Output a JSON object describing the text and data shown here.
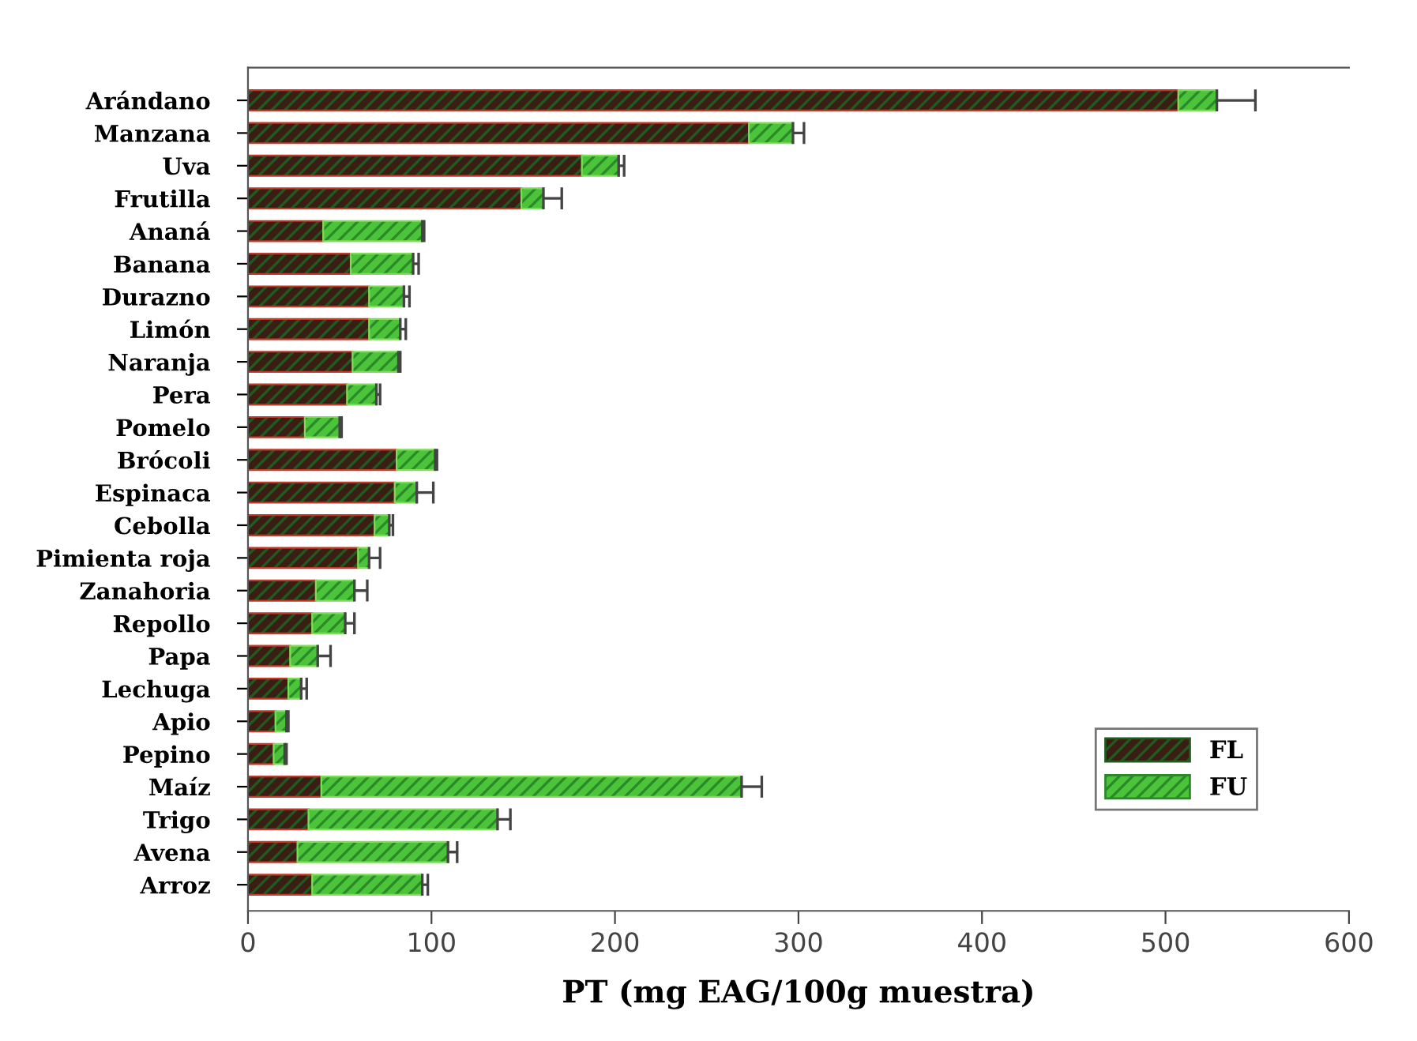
{
  "chart_data": {
    "type": "bar",
    "orientation": "horizontal",
    "stacked": true,
    "categories": [
      "Arándano",
      "Manzana",
      "Uva",
      "Frutilla",
      "Ananá",
      "Banana",
      "Durazno",
      "Limón",
      "Naranja",
      "Pera",
      "Pomelo",
      "Brócoli",
      "Espinaca",
      "Cebolla",
      "Pimienta roja",
      "Zanahoria",
      "Repollo",
      "Papa",
      "Lechuga",
      "Apio",
      "Pepino",
      "Maíz",
      "Trigo",
      "Avena",
      "Arroz"
    ],
    "series": [
      {
        "name": "FL",
        "color": "#3a1e14",
        "values": [
          507,
          273,
          182,
          149,
          41,
          56,
          66,
          66,
          57,
          54,
          31,
          81,
          80,
          69,
          60,
          37,
          35,
          23,
          22,
          15,
          14,
          40,
          33,
          27,
          35
        ]
      },
      {
        "name": "FU",
        "color": "#4cc43a",
        "values": [
          21,
          24,
          20,
          12,
          54,
          34,
          19,
          17,
          25,
          16,
          19,
          21,
          12,
          8,
          6,
          21,
          18,
          15,
          7,
          6,
          6,
          229,
          103,
          82,
          60
        ],
        "errors": [
          21,
          6,
          3,
          10,
          1,
          3,
          3,
          3,
          1,
          2,
          1,
          1,
          9,
          2,
          6,
          7,
          5,
          7,
          3,
          1,
          1,
          11,
          7,
          5,
          3
        ]
      }
    ],
    "xlabel": "PT (mg EAG/100g muestra)",
    "xlim": [
      0,
      600
    ],
    "xticks": [
      0,
      100,
      200,
      300,
      400,
      500,
      600
    ],
    "legend": "bottom right",
    "grid": false
  }
}
